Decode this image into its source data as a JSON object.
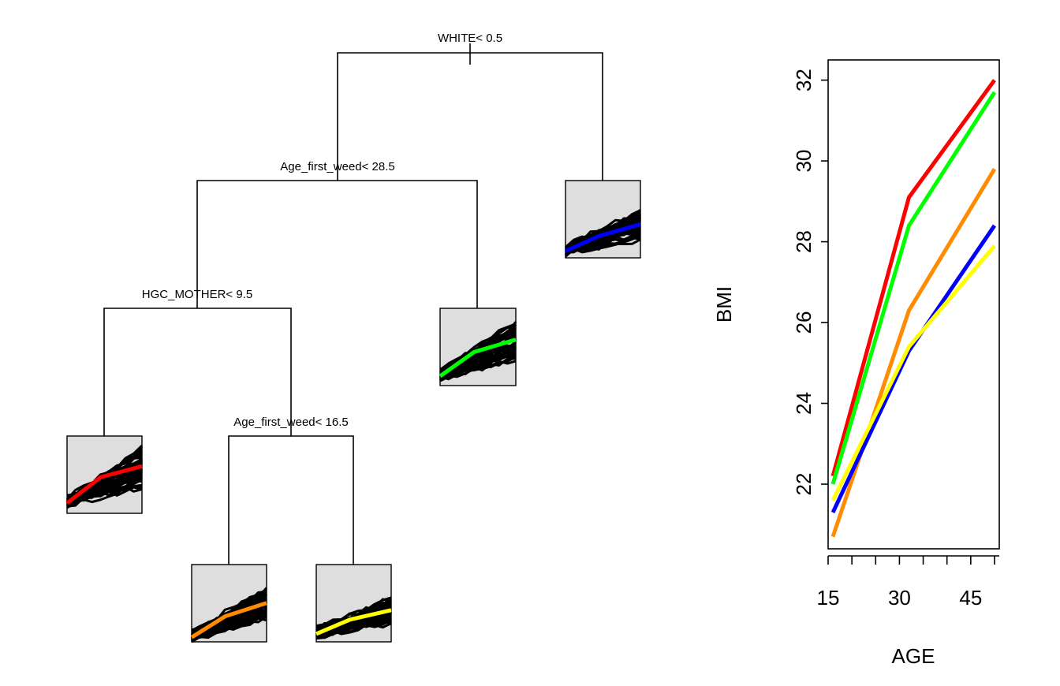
{
  "chart_data": [
    {
      "type": "diagram",
      "name": "regression tree",
      "splits": [
        {
          "id": "root",
          "label": "WHITE< 0.5"
        },
        {
          "id": "n2",
          "label": "Age_first_weed< 28.5"
        },
        {
          "id": "n4",
          "label": "HGC_MOTHER< 9.5"
        },
        {
          "id": "n9",
          "label": "Age_first_weed< 16.5"
        }
      ],
      "leaves": [
        {
          "id": "leaf-red",
          "color": "#ff0000",
          "mean": [
            22.2,
            29.1,
            32.0
          ]
        },
        {
          "id": "leaf-orange",
          "color": "#ff8c00",
          "mean": [
            20.7,
            26.3,
            29.8
          ]
        },
        {
          "id": "leaf-yellow",
          "color": "#ffff00",
          "mean": [
            21.6,
            25.4,
            27.9
          ]
        },
        {
          "id": "leaf-green",
          "color": "#00ff00",
          "mean": [
            22.0,
            28.4,
            31.7
          ]
        },
        {
          "id": "leaf-blue",
          "color": "#0000ff",
          "mean": [
            21.3,
            25.3,
            28.4
          ]
        }
      ]
    },
    {
      "type": "line",
      "x": [
        16,
        32,
        50
      ],
      "xlabel": "AGE",
      "ylabel": "BMI",
      "xticks": [
        15,
        30,
        45
      ],
      "yticks": [
        22,
        24,
        26,
        28,
        30,
        32
      ],
      "ylim": [
        20.4,
        32.5
      ],
      "xlim": [
        15,
        51
      ],
      "grid": false,
      "series": [
        {
          "color": "#ff0000",
          "values": [
            22.2,
            29.1,
            32.0
          ]
        },
        {
          "color": "#00ff00",
          "values": [
            22.0,
            28.4,
            31.7
          ]
        },
        {
          "color": "#ff8c00",
          "values": [
            20.7,
            26.3,
            29.8
          ]
        },
        {
          "color": "#0000ff",
          "values": [
            21.3,
            25.3,
            28.4
          ]
        },
        {
          "color": "#ffff00",
          "values": [
            21.6,
            25.4,
            27.9
          ]
        }
      ]
    }
  ]
}
